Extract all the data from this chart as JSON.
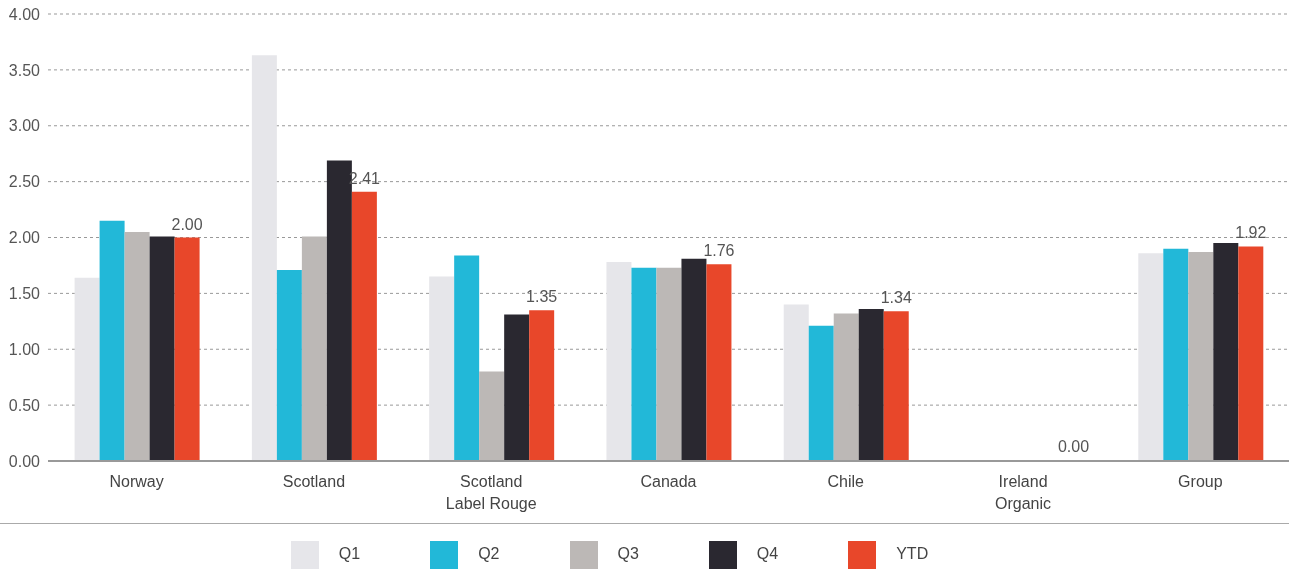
{
  "chart_data": {
    "type": "bar",
    "categories": [
      "Norway",
      "Scotland",
      "Scotland Label Rouge",
      "Canada",
      "Chile",
      "Ireland Organic",
      "Group"
    ],
    "series": [
      {
        "name": "Q1",
        "color": "#e6e6ea",
        "values": [
          1.64,
          3.63,
          1.65,
          1.78,
          1.4,
          0,
          1.86
        ]
      },
      {
        "name": "Q2",
        "color": "#22b8d8",
        "values": [
          2.15,
          1.71,
          1.84,
          1.73,
          1.21,
          0,
          1.9
        ]
      },
      {
        "name": "Q3",
        "color": "#bcb8b6",
        "values": [
          2.05,
          2.01,
          0.8,
          1.73,
          1.32,
          0,
          1.87
        ]
      },
      {
        "name": "Q4",
        "color": "#2a2830",
        "values": [
          2.01,
          2.69,
          1.31,
          1.81,
          1.36,
          0,
          1.95
        ]
      },
      {
        "name": "YTD",
        "color": "#e8472a",
        "values": [
          2.0,
          2.41,
          1.35,
          1.76,
          1.34,
          0,
          1.92
        ],
        "value_labels": [
          "2.00",
          "2.41",
          "1.35",
          "1.76",
          "1.34",
          "0.00",
          "1.92"
        ]
      }
    ],
    "ylim": [
      0,
      4
    ],
    "yticks": [
      {
        "value": 0,
        "label": "0.00"
      },
      {
        "value": 0.5,
        "label": "0.50"
      },
      {
        "value": 1,
        "label": "1.00"
      },
      {
        "value": 1.5,
        "label": "1.50"
      },
      {
        "value": 2,
        "label": "2.00"
      },
      {
        "value": 2.5,
        "label": "2.50"
      },
      {
        "value": 3,
        "label": "3.00"
      },
      {
        "value": 3.5,
        "label": "3.50"
      },
      {
        "value": 4,
        "label": "4.00"
      }
    ],
    "grid": "y",
    "legend": "bottom"
  }
}
